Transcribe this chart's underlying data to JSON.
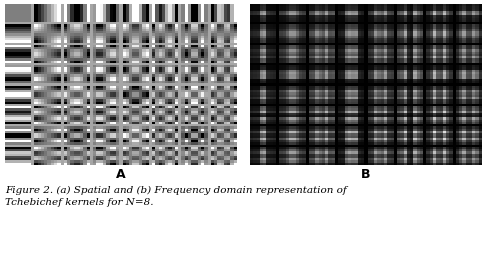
{
  "N": 8,
  "fig_width": 4.86,
  "fig_height": 2.55,
  "dpi": 100,
  "label_A": "A",
  "label_B": "B",
  "caption_line1": "Figure 2. (a) Spatial and (b) Frequency domain representation of",
  "caption_line2": "Tchebichef kernels for N=8.",
  "bg_color": "#ffffff",
  "caption_fontsize": 7.5,
  "label_fontsize": 9,
  "spatial_bg": "#c0c0c0",
  "freq_bg": "#808080"
}
